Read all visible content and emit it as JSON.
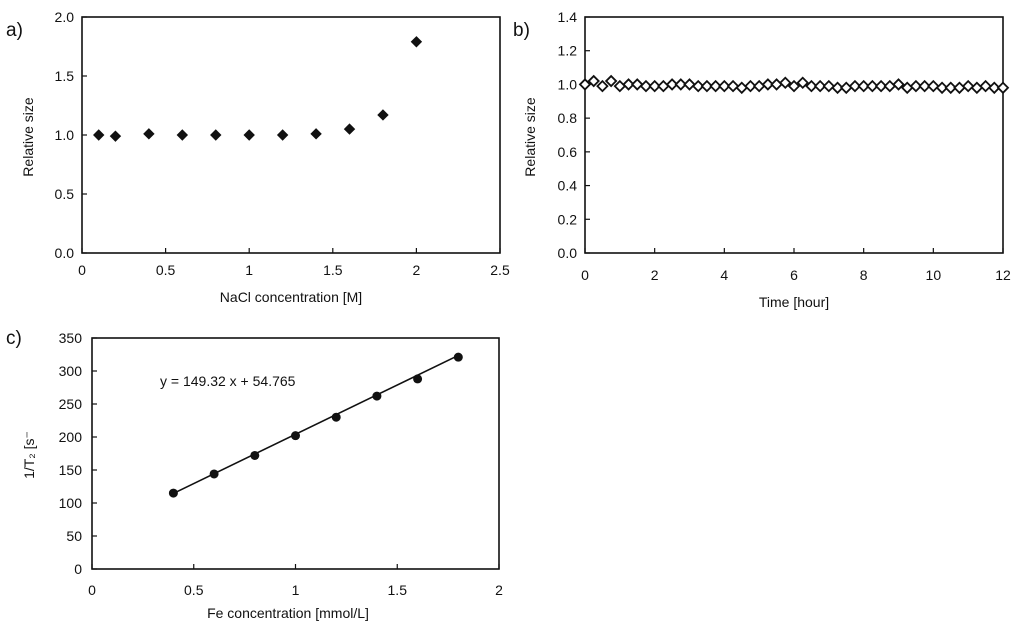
{
  "chart_data": [
    {
      "id": "a",
      "type": "scatter",
      "panel_label": "a)",
      "xlabel": "NaCl concentration [M]",
      "ylabel": "Relative size",
      "xlim": [
        0,
        2.5
      ],
      "ylim": [
        0,
        2.0
      ],
      "xticks": [
        0,
        0.5,
        1,
        1.5,
        2,
        2.5
      ],
      "xtick_labels": [
        "0",
        "0.5",
        "1",
        "1.5",
        "2",
        "2.5"
      ],
      "yticks": [
        0,
        0.5,
        1.0,
        1.5,
        2.0
      ],
      "ytick_labels": [
        "0.0",
        "0.5",
        "1.0",
        "1.5",
        "2.0"
      ],
      "marker": "filled-diamond",
      "x": [
        0.1,
        0.2,
        0.4,
        0.6,
        0.8,
        1.0,
        1.2,
        1.4,
        1.6,
        1.8,
        2.0
      ],
      "y": [
        1.0,
        0.99,
        1.01,
        1.0,
        1.0,
        1.0,
        1.0,
        1.01,
        1.05,
        1.17,
        1.79
      ]
    },
    {
      "id": "b",
      "type": "scatter",
      "panel_label": "b)",
      "xlabel": "Time [hour]",
      "ylabel": "Relative size",
      "xlim": [
        0,
        12
      ],
      "ylim": [
        0,
        1.4
      ],
      "xticks": [
        0,
        2,
        4,
        6,
        8,
        10,
        12
      ],
      "xtick_labels": [
        "0",
        "2",
        "4",
        "6",
        "8",
        "10",
        "12"
      ],
      "yticks": [
        0,
        0.2,
        0.4,
        0.6,
        0.8,
        1.0,
        1.2,
        1.4
      ],
      "ytick_labels": [
        "0.0",
        "0.2",
        "0.4",
        "0.6",
        "0.8",
        "1.0",
        "1.2",
        "1.4"
      ],
      "marker": "open-diamond",
      "x": [
        0,
        0.25,
        0.5,
        0.75,
        1.0,
        1.25,
        1.5,
        1.75,
        2.0,
        2.25,
        2.5,
        2.75,
        3.0,
        3.25,
        3.5,
        3.75,
        4.0,
        4.25,
        4.5,
        4.75,
        5.0,
        5.25,
        5.5,
        5.75,
        6.0,
        6.25,
        6.5,
        6.75,
        7.0,
        7.25,
        7.5,
        7.75,
        8.0,
        8.25,
        8.5,
        8.75,
        9.0,
        9.25,
        9.5,
        9.75,
        10.0,
        10.25,
        10.5,
        10.75,
        11.0,
        11.25,
        11.5,
        11.75,
        12.0
      ],
      "y": [
        1.0,
        1.02,
        0.99,
        1.02,
        0.99,
        1.0,
        1.0,
        0.99,
        0.99,
        0.99,
        1.0,
        1.0,
        1.0,
        0.99,
        0.99,
        0.99,
        0.99,
        0.99,
        0.98,
        0.99,
        0.99,
        1.0,
        1.0,
        1.01,
        0.99,
        1.01,
        0.99,
        0.99,
        0.99,
        0.98,
        0.98,
        0.99,
        0.99,
        0.99,
        0.99,
        0.99,
        1.0,
        0.98,
        0.99,
        0.99,
        0.99,
        0.98,
        0.98,
        0.98,
        0.99,
        0.98,
        0.99,
        0.98,
        0.98
      ]
    },
    {
      "id": "c",
      "type": "scatter",
      "panel_label": "c)",
      "xlabel": "Fe concentration [mmol/L]",
      "ylabel": "1/T₂ [s⁻",
      "xlim": [
        0,
        2
      ],
      "ylim": [
        0,
        350
      ],
      "xticks": [
        0,
        0.5,
        1,
        1.5,
        2
      ],
      "xtick_labels": [
        "0",
        "0.5",
        "1",
        "1.5",
        "2"
      ],
      "yticks": [
        0,
        50,
        100,
        150,
        200,
        250,
        300,
        350
      ],
      "ytick_labels": [
        "0",
        "50",
        "100",
        "150",
        "200",
        "250",
        "300",
        "350"
      ],
      "marker": "filled-circle",
      "x": [
        0.4,
        0.6,
        0.8,
        1.0,
        1.2,
        1.4,
        1.6,
        1.8
      ],
      "y": [
        115,
        144,
        172,
        202,
        230,
        262,
        288,
        321
      ],
      "fit": {
        "slope": 149.32,
        "intercept": 54.765,
        "x_range": [
          0.4,
          1.8
        ]
      },
      "annotation": "y = 149.32 x + 54.765"
    }
  ]
}
